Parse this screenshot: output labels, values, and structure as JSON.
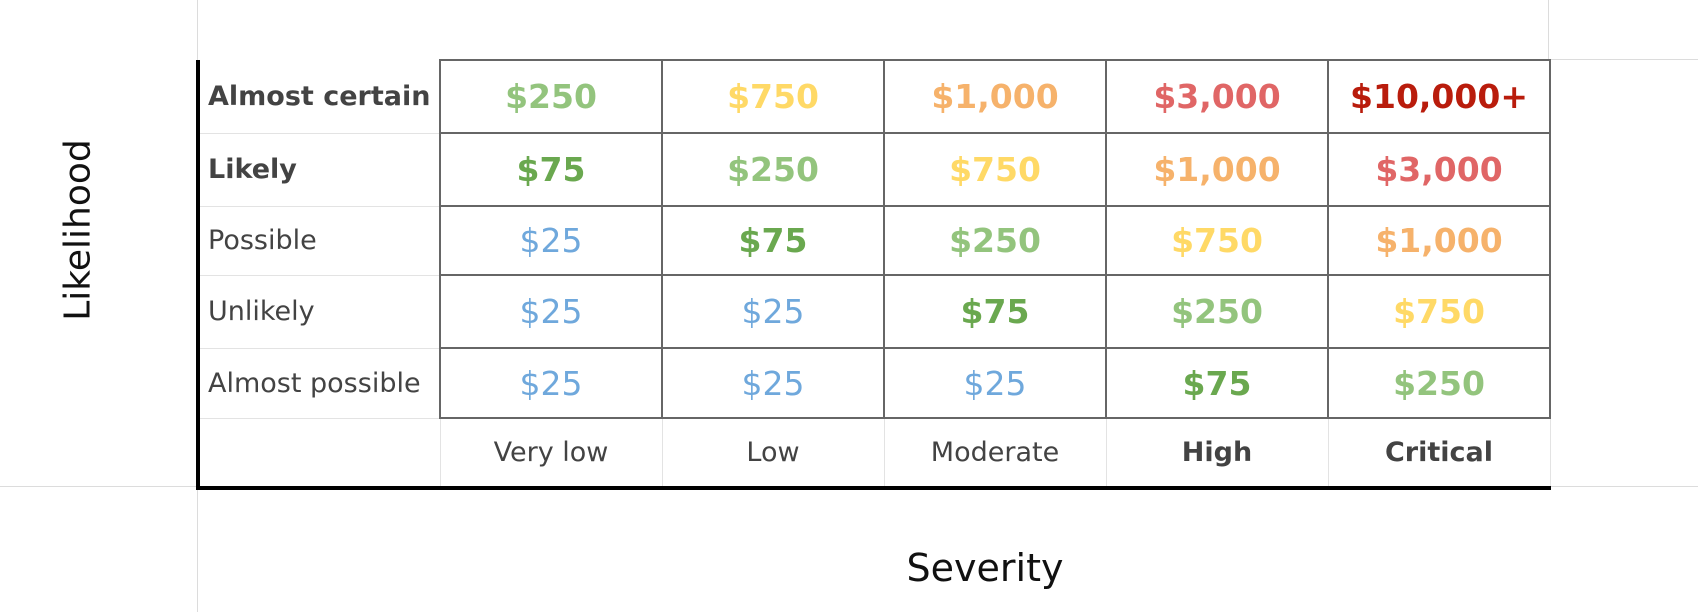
{
  "chart_data": {
    "type": "heatmap",
    "xlabel": "Severity",
    "ylabel": "Likelihood",
    "columns": [
      {
        "label": "Very low",
        "bold": false
      },
      {
        "label": "Low",
        "bold": false
      },
      {
        "label": "Moderate",
        "bold": false
      },
      {
        "label": "High",
        "bold": true
      },
      {
        "label": "Critical",
        "bold": true
      }
    ],
    "rows": [
      {
        "label": "Almost certain",
        "bold": true,
        "values": [
          "$250",
          "$750",
          "$1,000",
          "$3,000",
          "$10,000+"
        ]
      },
      {
        "label": "Likely",
        "bold": true,
        "values": [
          "$75",
          "$250",
          "$750",
          "$1,000",
          "$3,000"
        ]
      },
      {
        "label": "Possible",
        "bold": false,
        "values": [
          "$25",
          "$75",
          "$250",
          "$750",
          "$1,000"
        ]
      },
      {
        "label": "Unlikely",
        "bold": false,
        "values": [
          "$25",
          "$25",
          "$75",
          "$250",
          "$750"
        ]
      },
      {
        "label": "Almost possible",
        "bold": false,
        "values": [
          "$25",
          "$25",
          "$25",
          "$75",
          "$250"
        ]
      }
    ],
    "value_colors": {
      "$25": "#6fa8dc",
      "$75": "#6aa84f",
      "$250": "#93c47d",
      "$750": "#ffd966",
      "$1,000": "#f6b26b",
      "$3,000": "#e06666",
      "$10,000+": "#b91c0c"
    },
    "value_bold": {
      "$25": false,
      "$75": true,
      "$250": true,
      "$750": true,
      "$1,000": true,
      "$3,000": true,
      "$10,000+": true
    }
  }
}
